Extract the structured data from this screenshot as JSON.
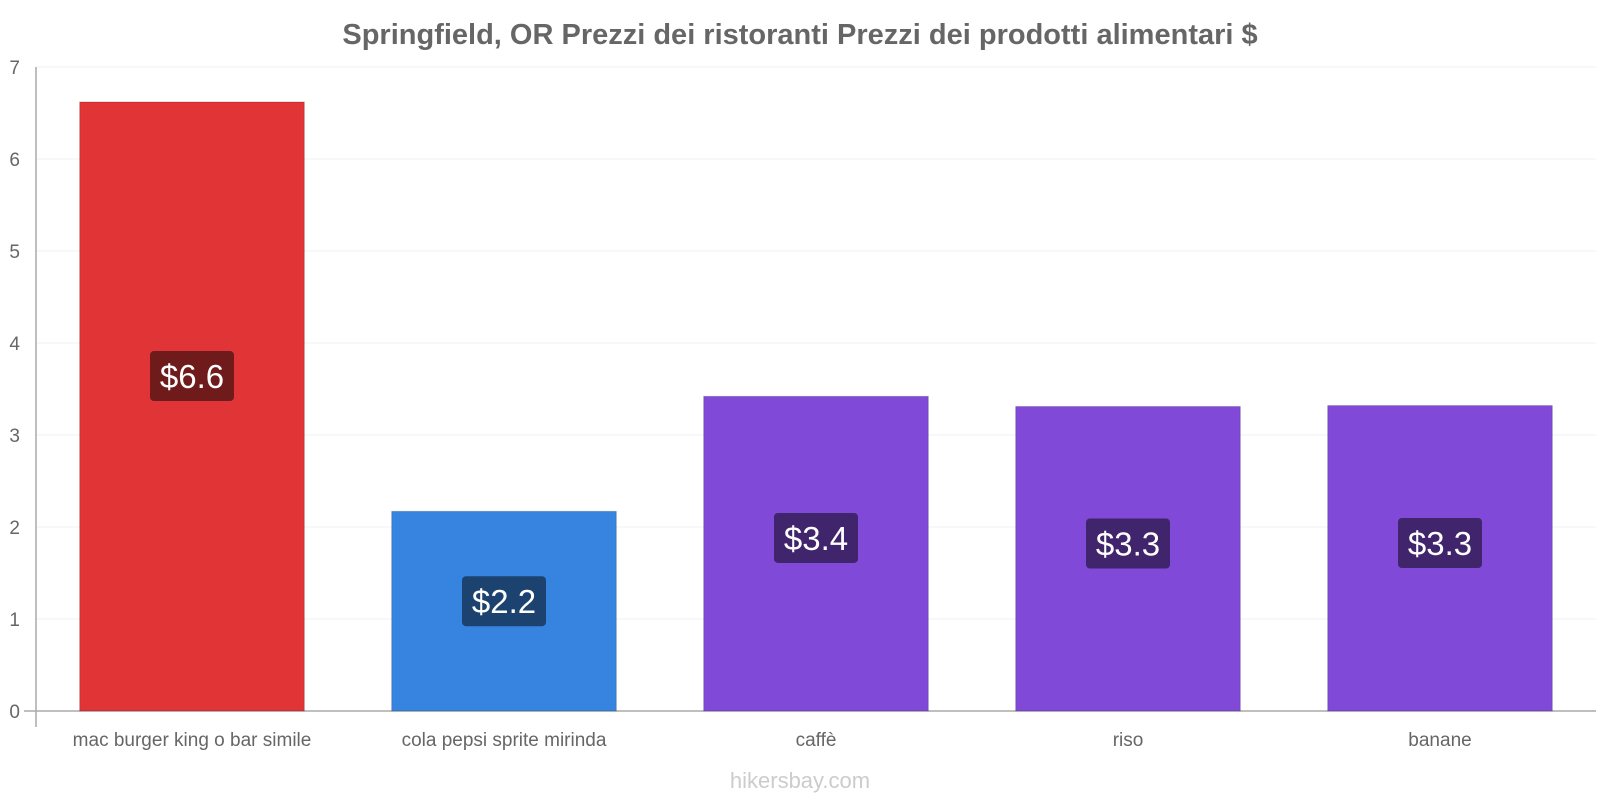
{
  "chart_data": {
    "type": "bar",
    "title": "Springfield, OR Prezzi dei ristoranti Prezzi dei prodotti alimentari $",
    "categories": [
      "mac burger king o bar simile",
      "cola pepsi sprite mirinda",
      "caffè",
      "riso",
      "banane"
    ],
    "values": [
      6.62,
      2.17,
      3.42,
      3.31,
      3.32
    ],
    "value_labels": [
      "$6.6",
      "$2.2",
      "$3.4",
      "$3.3",
      "$3.3"
    ],
    "bar_colors": [
      "#e03436",
      "#3684df",
      "#8049d8",
      "#8049d8",
      "#8049d8"
    ],
    "label_bg_colors": [
      "#6f1a1b",
      "#1c426f",
      "#40246c",
      "#40246c",
      "#40246c"
    ],
    "y_ticks": [
      0,
      1,
      2,
      3,
      4,
      5,
      6,
      7
    ],
    "ylim": [
      0,
      7
    ],
    "xlabel": "",
    "ylabel": "",
    "grid": true
  },
  "watermark": "hikersbay.com"
}
